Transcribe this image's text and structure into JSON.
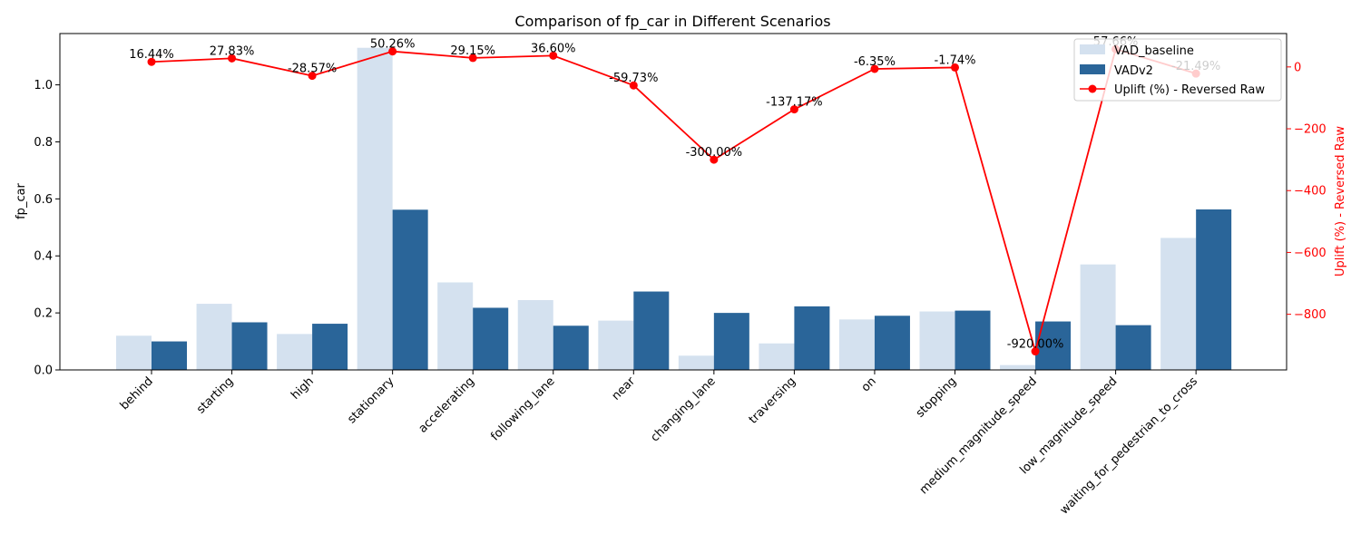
{
  "chart_data": {
    "type": "bar",
    "title": "Comparison of fp_car in Different Scenarios",
    "xlabel": "",
    "ylabel": "fp_car",
    "y2label": "Uplift (%) - Reversed Raw",
    "ylim": [
      0,
      1.18
    ],
    "y2lim": [
      -980,
      108
    ],
    "yticks": [
      "0.0",
      "0.2",
      "0.4",
      "0.6",
      "0.8",
      "1.0"
    ],
    "y2ticks": [
      "0",
      "−200",
      "−400",
      "−600",
      "−800"
    ],
    "categories": [
      "behind",
      "starting",
      "high",
      "stationary",
      "accelerating",
      "following_lane",
      "near",
      "changing_lane",
      "traversing",
      "on",
      "stopping",
      "medium_magnitude_speed",
      "low_magnitude_speed",
      "waiting_for_pedestrian_to_cross"
    ],
    "series": [
      {
        "name": "VAD_baseline",
        "kind": "bar",
        "values": [
          0.12,
          0.232,
          0.126,
          1.13,
          0.307,
          0.245,
          0.173,
          0.05,
          0.093,
          0.177,
          0.205,
          0.017,
          0.37,
          0.463
        ]
      },
      {
        "name": "VADv2",
        "kind": "bar",
        "values": [
          0.1,
          0.167,
          0.162,
          0.562,
          0.218,
          0.155,
          0.275,
          0.2,
          0.223,
          0.19,
          0.208,
          0.17,
          0.157,
          0.563
        ]
      },
      {
        "name": "Uplift (%) - Reversed Raw",
        "kind": "line",
        "axis": "right",
        "values": [
          16.44,
          27.83,
          -28.57,
          50.26,
          29.15,
          36.6,
          -59.73,
          -300.0,
          -137.17,
          -6.35,
          -1.74,
          -920.0,
          57.66,
          -21.49
        ]
      }
    ],
    "data_labels": [
      "16.44%",
      "27.83%",
      "-28.57%",
      "50.26%",
      "29.15%",
      "36.60%",
      "-59.73%",
      "-300.00%",
      "-137.17%",
      "-6.35%",
      "-1.74%",
      "-920.00%",
      "57.66%",
      "-21.49%"
    ],
    "legend_position": "top-right",
    "grid": false,
    "colors": {
      "baseline": "#d4e1ef",
      "v2": "#2a6599",
      "uplift": "#ff0000",
      "axis": "#000000"
    }
  }
}
